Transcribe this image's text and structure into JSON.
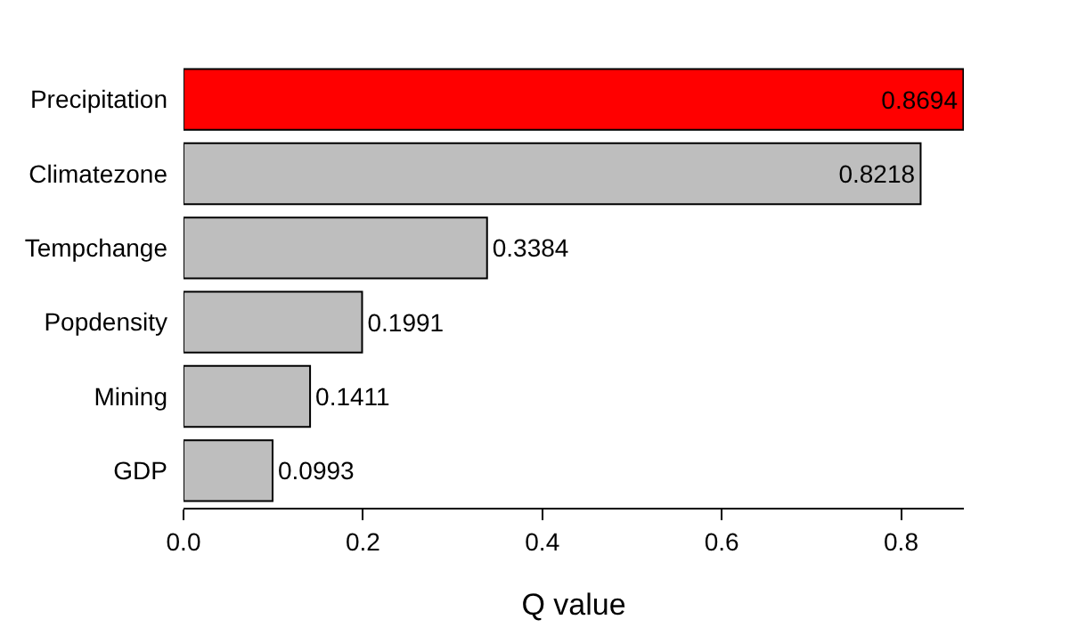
{
  "chart_data": {
    "type": "bar",
    "orientation": "horizontal",
    "xlabel": "Q value",
    "categories": [
      "Precipitation",
      "Climatezone",
      "Tempchange",
      "Popdensity",
      "Mining",
      "GDP"
    ],
    "values": [
      0.8694,
      0.8218,
      0.3384,
      0.1991,
      0.1411,
      0.0993
    ],
    "colors": [
      "#ff0000",
      "#bebebe",
      "#bebebe",
      "#bebebe",
      "#bebebe",
      "#bebebe"
    ],
    "data_labels": true,
    "xlim": [
      0,
      0.87
    ],
    "xticks": [
      {
        "value": 0,
        "label": "0.0"
      },
      0.2,
      0.4,
      0.6,
      0.8
    ]
  }
}
